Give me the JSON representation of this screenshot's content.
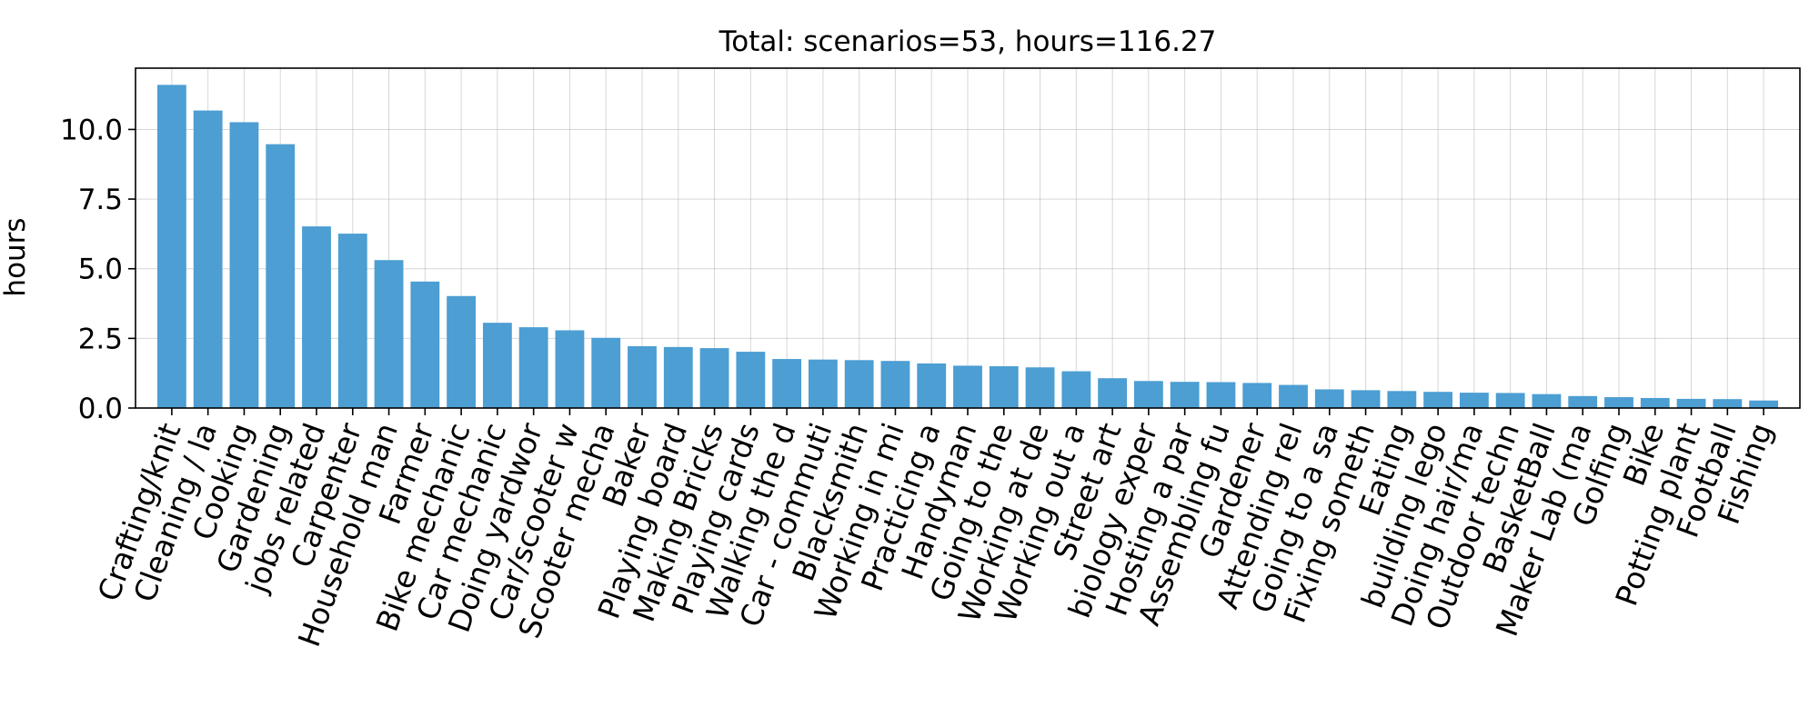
{
  "chart_data": {
    "type": "bar",
    "title": "Total: scenarios=53, hours=116.27",
    "xlabel": "",
    "ylabel": "hours",
    "ylim": [
      0,
      12.2
    ],
    "yticks": [
      "0.0",
      "2.5",
      "5.0",
      "7.5",
      "10.0"
    ],
    "grid": true,
    "bar_color": "#4c9ed3",
    "categories": [
      "Crafting/knit",
      "Cleaning / la",
      "Cooking",
      "Gardening",
      "jobs related",
      "Carpenter",
      "Household man",
      "Farmer",
      "Bike mechanic",
      "Car mechanic",
      "Doing yardwor",
      "Car/scooter w",
      "Scooter mecha",
      "Baker",
      "Playing board",
      "Making Bricks",
      "Playing cards",
      "Walking the d",
      "Car - commuti",
      "Blacksmith",
      "Working in mi",
      "Practicing a",
      "Handyman",
      "Going to the",
      "Working at de",
      "Working out a",
      "Street art",
      "biology exper",
      "Hosting a par",
      "Assembling fu",
      "Gardener",
      "Attending rel",
      "Going to a sa",
      "Fixing someth",
      "Eating",
      "building lego",
      "Doing hair/ma",
      "Outdoor techn",
      "BasketBall",
      "Maker Lab (ma",
      "Golfing",
      "Bike",
      "Potting plant",
      "Football",
      "Fishing"
    ],
    "values": [
      11.6,
      10.68,
      10.26,
      9.47,
      6.52,
      6.26,
      5.31,
      4.54,
      4.02,
      3.06,
      2.9,
      2.79,
      2.52,
      2.22,
      2.19,
      2.15,
      2.02,
      1.76,
      1.74,
      1.72,
      1.69,
      1.6,
      1.52,
      1.5,
      1.46,
      1.32,
      1.07,
      0.97,
      0.94,
      0.93,
      0.9,
      0.83,
      0.67,
      0.64,
      0.61,
      0.58,
      0.55,
      0.54,
      0.5,
      0.43,
      0.39,
      0.36,
      0.33,
      0.32,
      0.27
    ]
  }
}
